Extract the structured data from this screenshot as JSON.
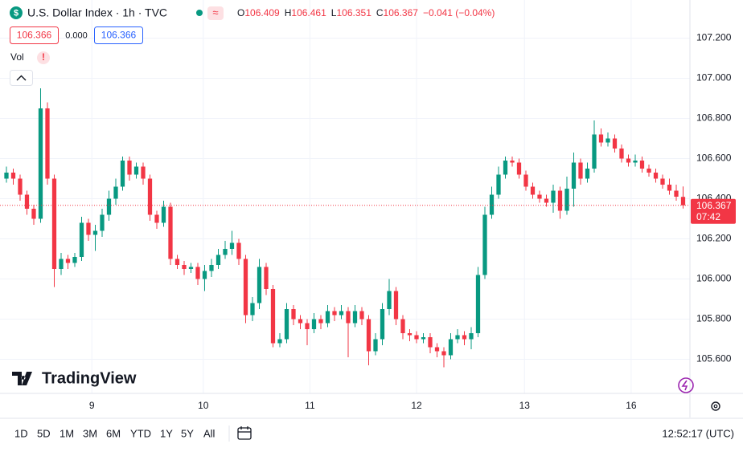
{
  "header": {
    "title": "U.S. Dollar Index · 1h · TVC",
    "ohlc": [
      {
        "label": "O",
        "value": "106.409"
      },
      {
        "label": "H",
        "value": "106.461"
      },
      {
        "label": "L",
        "value": "106.351"
      },
      {
        "label": "C",
        "value": "106.367"
      }
    ],
    "change": "−0.041 (−0.04%)",
    "badges": [
      "106.366",
      "0.000",
      "106.366"
    ],
    "vol": "Vol",
    "vol_alert": "!"
  },
  "chart_data": {
    "type": "candlestick",
    "up_color": "#089981",
    "down_color": "#f23645",
    "xlim": [
      -0.94,
      100
    ],
    "xticks": [
      {
        "value": 12.5,
        "label": "9"
      },
      {
        "value": 28.8,
        "label": "10"
      },
      {
        "value": 44.4,
        "label": "11"
      },
      {
        "value": 60,
        "label": "12"
      },
      {
        "value": 75.8,
        "label": "13"
      },
      {
        "value": 91.4,
        "label": "16"
      }
    ],
    "ylim": [
      105.43,
      107.39
    ],
    "yticks": [
      {
        "value": 107.2,
        "label": "107.200"
      },
      {
        "value": 107.0,
        "label": "107.000"
      },
      {
        "value": 106.8,
        "label": "106.800"
      },
      {
        "value": 106.6,
        "label": "106.600"
      },
      {
        "value": 106.4,
        "label": "106.400"
      },
      {
        "value": 106.2,
        "label": "106.200"
      },
      {
        "value": 106.0,
        "label": "106.000"
      },
      {
        "value": 105.8,
        "label": "105.800"
      },
      {
        "value": 105.6,
        "label": "105.600"
      }
    ],
    "grid": true,
    "last_price": {
      "value": 106.367,
      "label": "106.367",
      "countdown": "07:42"
    },
    "open": [
      106.5,
      106.53,
      106.5,
      106.42,
      106.35,
      106.3,
      106.85,
      106.5,
      106.05,
      106.1,
      106.08,
      106.11,
      106.28,
      106.22,
      106.24,
      106.32,
      106.4,
      106.46,
      106.59,
      106.52,
      106.56,
      106.5,
      106.32,
      106.28,
      106.36,
      106.1,
      106.07,
      106.05,
      106.06,
      106.0,
      106.04,
      106.07,
      106.12,
      106.15,
      106.18,
      106.1,
      105.82,
      105.88,
      106.06,
      105.95,
      105.68,
      105.7,
      105.85,
      105.8,
      105.78,
      105.75,
      105.8,
      105.78,
      105.84,
      105.82,
      105.84,
      105.78,
      105.84,
      105.8,
      105.64,
      105.7,
      105.85,
      105.94,
      105.8,
      105.73,
      105.72,
      105.7,
      105.71,
      105.66,
      105.64,
      105.62,
      105.7,
      105.72,
      105.7,
      105.73,
      106.02,
      106.32,
      106.42,
      106.52,
      106.59,
      106.58,
      106.52,
      106.46,
      106.42,
      106.4,
      106.38,
      106.44,
      106.34,
      106.45,
      106.58,
      106.5,
      106.55,
      106.72,
      106.68,
      106.7,
      106.65,
      106.6,
      106.58,
      106.59,
      106.55,
      106.53,
      106.5,
      106.47,
      106.44,
      106.409
    ],
    "high": [
      106.56,
      106.55,
      106.52,
      106.44,
      106.37,
      106.95,
      106.88,
      106.52,
      106.13,
      106.12,
      106.13,
      106.31,
      106.3,
      106.27,
      106.35,
      106.44,
      106.5,
      106.61,
      106.61,
      106.58,
      106.58,
      106.52,
      106.34,
      106.39,
      106.38,
      106.12,
      106.09,
      106.08,
      106.08,
      106.07,
      106.1,
      106.15,
      106.19,
      106.24,
      106.2,
      106.12,
      105.91,
      106.1,
      106.08,
      105.97,
      105.73,
      105.88,
      105.87,
      105.82,
      105.8,
      105.83,
      105.82,
      105.87,
      105.86,
      105.87,
      105.86,
      105.87,
      105.86,
      105.82,
      105.73,
      105.88,
      106.0,
      105.96,
      105.82,
      105.75,
      105.74,
      105.73,
      105.73,
      105.68,
      105.66,
      105.73,
      105.75,
      105.74,
      105.76,
      106.06,
      106.36,
      106.46,
      106.56,
      106.61,
      106.61,
      106.6,
      106.54,
      106.48,
      106.44,
      106.42,
      106.47,
      106.46,
      106.51,
      106.63,
      106.6,
      106.58,
      106.79,
      106.75,
      106.73,
      106.72,
      106.67,
      106.62,
      106.62,
      106.61,
      106.57,
      106.55,
      106.52,
      106.5,
      106.47,
      106.461
    ],
    "low": [
      106.48,
      106.47,
      106.39,
      106.32,
      106.27,
      106.28,
      106.47,
      105.96,
      106.02,
      106.05,
      106.06,
      106.09,
      106.19,
      106.14,
      106.21,
      106.29,
      106.37,
      106.44,
      106.49,
      106.5,
      106.47,
      106.29,
      106.25,
      106.26,
      106.07,
      106.05,
      106.02,
      106.03,
      105.97,
      105.94,
      106.01,
      106.05,
      106.1,
      106.12,
      106.07,
      105.78,
      105.79,
      105.85,
      105.92,
      105.66,
      105.66,
      105.68,
      105.77,
      105.75,
      105.67,
      105.73,
      105.75,
      105.76,
      105.79,
      105.8,
      105.61,
      105.76,
      105.77,
      105.57,
      105.62,
      105.67,
      105.82,
      105.77,
      105.7,
      105.69,
      105.68,
      105.68,
      105.63,
      105.61,
      105.56,
      105.6,
      105.68,
      105.67,
      105.65,
      105.71,
      106.0,
      106.3,
      106.4,
      106.5,
      106.56,
      106.5,
      106.44,
      106.4,
      106.38,
      106.36,
      106.33,
      106.3,
      106.32,
      106.36,
      106.47,
      106.48,
      106.53,
      106.66,
      106.66,
      106.63,
      106.58,
      106.56,
      106.56,
      106.53,
      106.51,
      106.48,
      106.45,
      106.42,
      106.39,
      106.351
    ],
    "close": [
      106.53,
      106.5,
      106.42,
      106.35,
      106.3,
      106.85,
      106.5,
      106.05,
      106.1,
      106.08,
      106.11,
      106.28,
      106.22,
      106.24,
      106.32,
      106.4,
      106.46,
      106.59,
      106.52,
      106.56,
      106.5,
      106.32,
      106.28,
      106.36,
      106.1,
      106.07,
      106.05,
      106.06,
      106.0,
      106.04,
      106.07,
      106.12,
      106.15,
      106.18,
      106.1,
      105.82,
      105.88,
      106.06,
      105.95,
      105.68,
      105.7,
      105.85,
      105.8,
      105.78,
      105.75,
      105.8,
      105.78,
      105.84,
      105.82,
      105.84,
      105.78,
      105.84,
      105.8,
      105.64,
      105.7,
      105.85,
      105.94,
      105.8,
      105.73,
      105.72,
      105.7,
      105.71,
      105.66,
      105.64,
      105.62,
      105.7,
      105.72,
      105.7,
      105.73,
      106.02,
      106.32,
      106.42,
      106.52,
      106.59,
      106.58,
      106.52,
      106.46,
      106.42,
      106.4,
      106.38,
      106.44,
      106.34,
      106.45,
      106.58,
      106.5,
      106.55,
      106.72,
      106.68,
      106.7,
      106.65,
      106.6,
      106.58,
      106.59,
      106.55,
      106.53,
      106.5,
      106.47,
      106.44,
      106.41,
      106.367
    ]
  },
  "watermark": "TradingView",
  "toolbar": {
    "ranges": [
      "1D",
      "5D",
      "1M",
      "3M",
      "6M",
      "YTD",
      "1Y",
      "5Y",
      "All"
    ],
    "clock": "12:52:17 (UTC)"
  }
}
